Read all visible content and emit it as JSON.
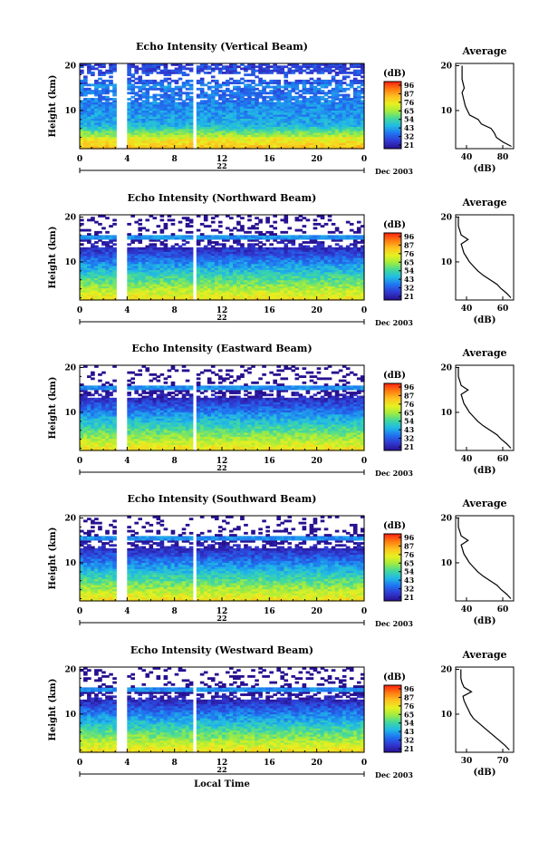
{
  "xlabel": "Local Time",
  "x_ticks": [
    "0",
    "4",
    "8",
    "12",
    "16",
    "20",
    "0"
  ],
  "date_day": "22",
  "date_label": "Dec 2003",
  "ylabel": "Height (km)",
  "y_ticks": [
    "20",
    "10"
  ],
  "colorbar_unit": "(dB)",
  "colorbar_ticks": [
    "96",
    "87",
    "76",
    "65",
    "54",
    "43",
    "32",
    "21"
  ],
  "colorbar_colors": [
    "#ff2010",
    "#ff7a10",
    "#ffc020",
    "#e8f020",
    "#a0ec40",
    "#40d8a0",
    "#20b8e8",
    "#2070f0",
    "#3038d0",
    "#281090"
  ],
  "average_title": "Average",
  "average_xlabel": "(dB)",
  "chart_data": [
    {
      "type": "heatmap",
      "title": "Echo Intensity (Vertical Beam)",
      "xlabel": "Local Time",
      "ylabel": "Height (km)",
      "xlim": [
        0,
        24
      ],
      "ylim": [
        1.5,
        20.5
      ],
      "colorbar": {
        "label": "(dB)",
        "ticks": [
          96,
          87,
          76,
          65,
          54,
          43,
          32,
          21
        ]
      },
      "profile_ylim": [
        14,
        25
      ],
      "avg_profile": {
        "xlim": [
          34,
          88
        ],
        "xticks": [
          "40",
          "80"
        ],
        "height": [
          2,
          3,
          4,
          5,
          6,
          7,
          8,
          9,
          10,
          11,
          12,
          13,
          14,
          15,
          16,
          17,
          18,
          19,
          20
        ],
        "db": [
          86,
          78,
          72,
          70,
          67,
          58,
          55,
          47,
          45,
          43,
          42,
          41,
          40,
          42,
          41,
          40,
          40,
          40,
          40
        ]
      }
    },
    {
      "type": "heatmap",
      "title": "Echo Intensity (Northward Beam)",
      "xlabel": "Local Time",
      "ylabel": "Height (km)",
      "xlim": [
        0,
        24
      ],
      "ylim": [
        1.5,
        20.5
      ],
      "colorbar": {
        "label": "(dB)",
        "ticks": [
          96,
          87,
          76,
          65,
          54,
          43,
          32,
          21
        ]
      },
      "profile_ylim": [
        15,
        13
      ],
      "avg_profile": {
        "xlim": [
          30,
          72
        ],
        "xticks": [
          "40",
          "60"
        ],
        "height": [
          2,
          3,
          4,
          5,
          6,
          7,
          8,
          9,
          10,
          11,
          12,
          13,
          14,
          15,
          16,
          17,
          18,
          19,
          20
        ],
        "db": [
          70,
          67,
          63,
          60,
          55,
          50,
          46,
          43,
          40,
          38,
          36,
          35,
          34,
          39,
          34,
          33,
          32,
          32,
          32
        ]
      }
    },
    {
      "type": "heatmap",
      "title": "Echo Intensity (Eastward Beam)",
      "xlabel": "Local Time",
      "ylabel": "Height (km)",
      "xlim": [
        0,
        24
      ],
      "ylim": [
        1.5,
        20.5
      ],
      "colorbar": {
        "label": "(dB)",
        "ticks": [
          96,
          87,
          76,
          65,
          54,
          43,
          32,
          21
        ]
      },
      "profile_ylim": [
        15,
        13
      ],
      "avg_profile": {
        "xlim": [
          30,
          72
        ],
        "xticks": [
          "40",
          "60"
        ],
        "height": [
          2,
          3,
          4,
          5,
          6,
          7,
          8,
          9,
          10,
          11,
          12,
          13,
          14,
          15,
          16,
          17,
          18,
          19,
          20
        ],
        "db": [
          70,
          67,
          63,
          60,
          55,
          50,
          46,
          43,
          40,
          38,
          36,
          35,
          34,
          39,
          34,
          33,
          32,
          32,
          32
        ]
      }
    },
    {
      "type": "heatmap",
      "title": "Echo Intensity (Southward Beam)",
      "xlabel": "Local Time",
      "ylabel": "Height (km)",
      "xlim": [
        0,
        24
      ],
      "ylim": [
        1.5,
        20.5
      ],
      "colorbar": {
        "label": "(dB)",
        "ticks": [
          96,
          87,
          76,
          65,
          54,
          43,
          32,
          21
        ]
      },
      "profile_ylim": [
        15,
        13
      ],
      "avg_profile": {
        "xlim": [
          30,
          72
        ],
        "xticks": [
          "40",
          "60"
        ],
        "height": [
          2,
          3,
          4,
          5,
          6,
          7,
          8,
          9,
          10,
          11,
          12,
          13,
          14,
          15,
          16,
          17,
          18,
          19,
          20
        ],
        "db": [
          70,
          67,
          63,
          60,
          55,
          50,
          46,
          43,
          40,
          38,
          36,
          35,
          34,
          39,
          34,
          33,
          32,
          32,
          32
        ]
      }
    },
    {
      "type": "heatmap",
      "title": "Echo Intensity (Westward Beam)",
      "xlabel": "Local Time",
      "ylabel": "Height (km)",
      "xlim": [
        0,
        24
      ],
      "ylim": [
        1.5,
        20.5
      ],
      "colorbar": {
        "label": "(dB)",
        "ticks": [
          96,
          87,
          76,
          65,
          54,
          43,
          32,
          21
        ]
      },
      "profile_ylim": [
        15,
        13
      ],
      "avg_profile": {
        "xlim": [
          25,
          80
        ],
        "xticks": [
          "30",
          "70"
        ],
        "height": [
          2,
          3,
          4,
          5,
          6,
          7,
          8,
          9,
          10,
          11,
          12,
          13,
          14,
          15,
          16,
          17,
          18,
          19,
          20
        ],
        "db": [
          76,
          72,
          67,
          62,
          57,
          52,
          47,
          42,
          39,
          37,
          35,
          33,
          32,
          40,
          33,
          31,
          30,
          30,
          30
        ]
      }
    }
  ]
}
